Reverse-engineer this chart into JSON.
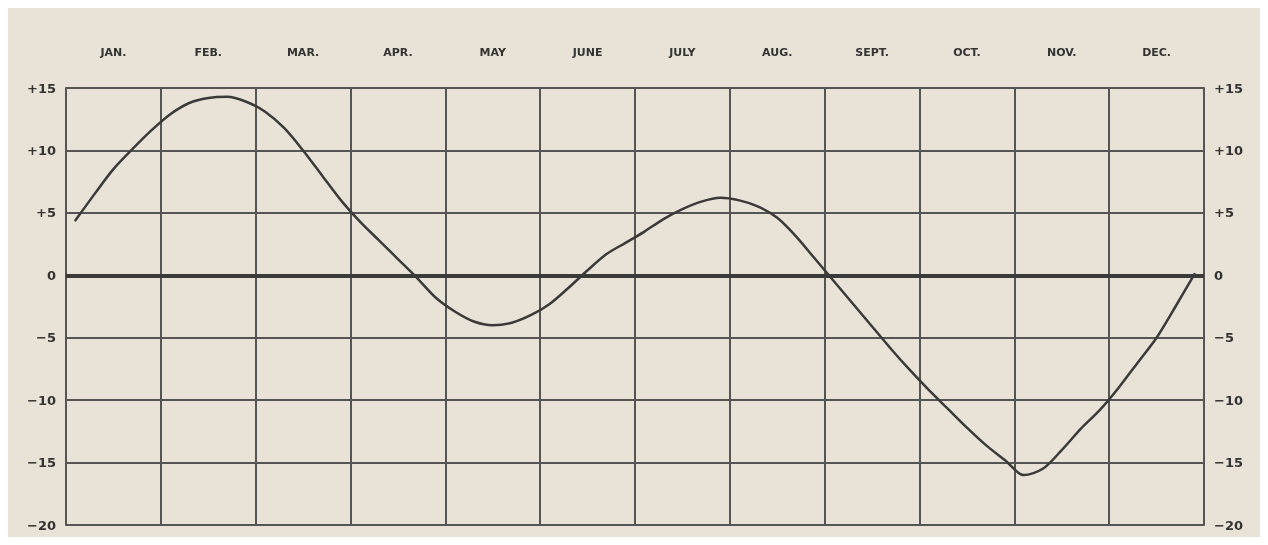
{
  "chart_data": {
    "type": "line",
    "categories": [
      null,
      null,
      "JAN.",
      null,
      null,
      null,
      null,
      "FEB.",
      null,
      null,
      null,
      null,
      "MAR.",
      null,
      null,
      null,
      null,
      "APR.",
      null,
      null,
      null,
      null,
      "MAY",
      null,
      null,
      null,
      null,
      "JUNE",
      null,
      null,
      null,
      null,
      "JULY",
      null,
      null,
      null,
      null,
      "AUG.",
      null,
      null,
      null,
      null,
      "SEPT.",
      null,
      null,
      null,
      null,
      "OCT.",
      null,
      null,
      null,
      null,
      "NOV.",
      null,
      null,
      null,
      null,
      "DEC.",
      null,
      null
    ],
    "series": [
      {
        "color": "#3a3a3a",
        "values": [
          4.4,
          6.5,
          8.5,
          10.1,
          11.6,
          12.9,
          13.8,
          14.2,
          14.3,
          13.9,
          13.1,
          11.8,
          10.0,
          8.0,
          6.0,
          4.3,
          2.8,
          1.3,
          -0.2,
          -1.8,
          -2.9,
          -3.7,
          -4.0,
          -3.8,
          -3.2,
          -2.3,
          -1.0,
          0.4,
          1.7,
          2.6,
          3.5,
          4.5,
          5.3,
          5.9,
          6.2,
          6.0,
          5.5,
          4.6,
          3.1,
          1.3,
          -0.5,
          -2.3,
          -4.1,
          -5.9,
          -7.6,
          -9.2,
          -10.7,
          -12.2,
          -13.6,
          -14.8,
          -16.0,
          -15.5,
          -14.0,
          -12.3,
          -10.8,
          -9.0,
          -7.0,
          -5.0,
          -2.5,
          0.1
        ]
      }
    ],
    "ylim": [
      -20,
      15
    ],
    "yticks": [
      {
        "value": -20,
        "label": "−20"
      },
      {
        "value": -15,
        "label": "−15"
      },
      {
        "value": -10,
        "label": "−10"
      },
      {
        "value": -5,
        "label": "−5"
      },
      0,
      {
        "value": 5,
        "label": "+5"
      },
      {
        "value": 10,
        "label": "+10"
      },
      {
        "value": 15,
        "label": "+15"
      }
    ],
    "y2lim": [
      -20,
      15
    ],
    "y2ticks": [
      {
        "value": -20,
        "label": "−20"
      },
      {
        "value": -15,
        "label": "−15"
      },
      {
        "value": -10,
        "label": "−10"
      },
      {
        "value": -5,
        "label": "−5"
      },
      0,
      {
        "value": 5,
        "label": "+5"
      },
      {
        "value": 10,
        "label": "+10"
      },
      {
        "value": 15,
        "label": "+15"
      }
    ],
    "grid": true,
    "ref_lines": [
      {
        "axis": "y",
        "value": 0,
        "color": "#3a3a3a"
      }
    ],
    "marker": "none",
    "line_style": "solid"
  }
}
